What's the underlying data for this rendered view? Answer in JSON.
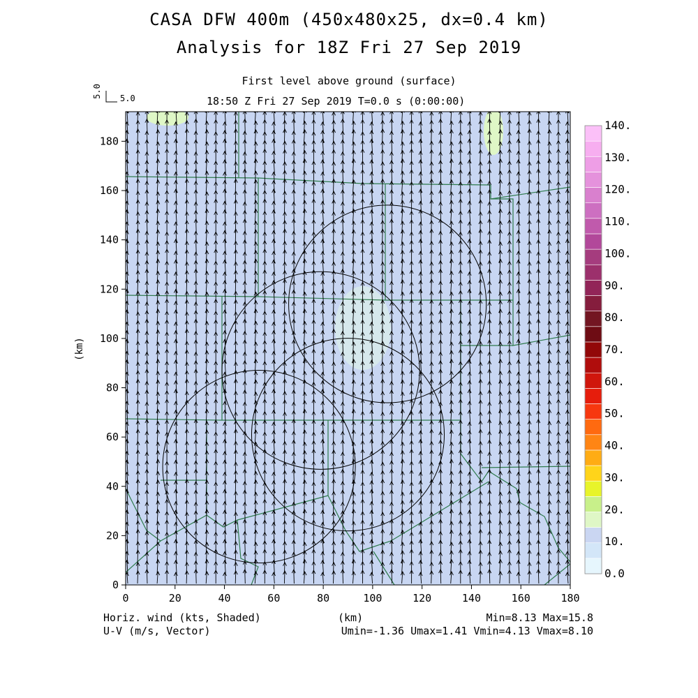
{
  "header": {
    "title_line1": "CASA DFW 400m (450x480x25, dx=0.4 km)",
    "title_line2": "Analysis for 18Z Fri 27 Sep 2019",
    "level_label": "First level above ground (surface)",
    "time_label": "18:50 Z Fri 27 Sep 2019    T=0.0 s (0:00:00)",
    "ref_vector_rot": "5.0",
    "ref_vector_label": "5.0"
  },
  "footer": {
    "left1": "Horiz. wind (kts, Shaded)",
    "left2": "U-V (m/s, Vector)",
    "xunit": "(km)",
    "right1": "Min=8.13 Max=15.8",
    "right2": "Umin=-1.36 Umax=1.41 Vmin=4.13 Vmax=8.10"
  },
  "chart_data": {
    "type": "heatmap",
    "xlabel": "(km)",
    "ylabel": "(km)",
    "xlim": [
      0,
      180
    ],
    "ylim": [
      0,
      192
    ],
    "xticks": [
      0,
      20,
      40,
      60,
      80,
      100,
      120,
      140,
      160,
      180
    ],
    "yticks": [
      0,
      20,
      40,
      60,
      80,
      100,
      120,
      140,
      160,
      180
    ],
    "field": "Horizontal wind speed (kts), shaded, with U-V wind vectors (m/s)",
    "min": 8.13,
    "max": 15.8,
    "umin": -1.36,
    "umax": 1.41,
    "vmin": 4.13,
    "vmax": 8.1,
    "dominant_fill": "#c8d6f2",
    "vector_direction": "southerly (pointing north)",
    "colorbar": {
      "labels": [
        "0.0",
        "10.",
        "20.",
        "30.",
        "40.",
        "50.",
        "60.",
        "70.",
        "80.",
        "90.",
        "100.",
        "110.",
        "120.",
        "130.",
        "140."
      ],
      "colors": [
        "#e6f6fd",
        "#d3e6f8",
        "#cad6f2",
        "#dff7c6",
        "#c8f08a",
        "#e8f42a",
        "#ffd41a",
        "#ffac14",
        "#ff8514",
        "#ff6a10",
        "#f7380f",
        "#e61d0c",
        "#d0160c",
        "#b00d0c",
        "#920808",
        "#6e0c14",
        "#731622",
        "#851d3d",
        "#922558",
        "#9c306c",
        "#a53c7e",
        "#b2489a",
        "#c05aac",
        "#cd6fc1",
        "#d980ce",
        "#e592dc",
        "#ee9ee6",
        "#f7aef0",
        "#fbc0f8"
      ]
    },
    "radar_rings": [
      {
        "center_km": [
          54,
          48
        ],
        "radius_km": 39
      },
      {
        "center_km": [
          79,
          87
        ],
        "radius_km": 40
      },
      {
        "center_km": [
          90,
          61
        ],
        "radius_km": 39
      },
      {
        "center_km": [
          106,
          114
        ],
        "radius_km": 40
      }
    ]
  }
}
